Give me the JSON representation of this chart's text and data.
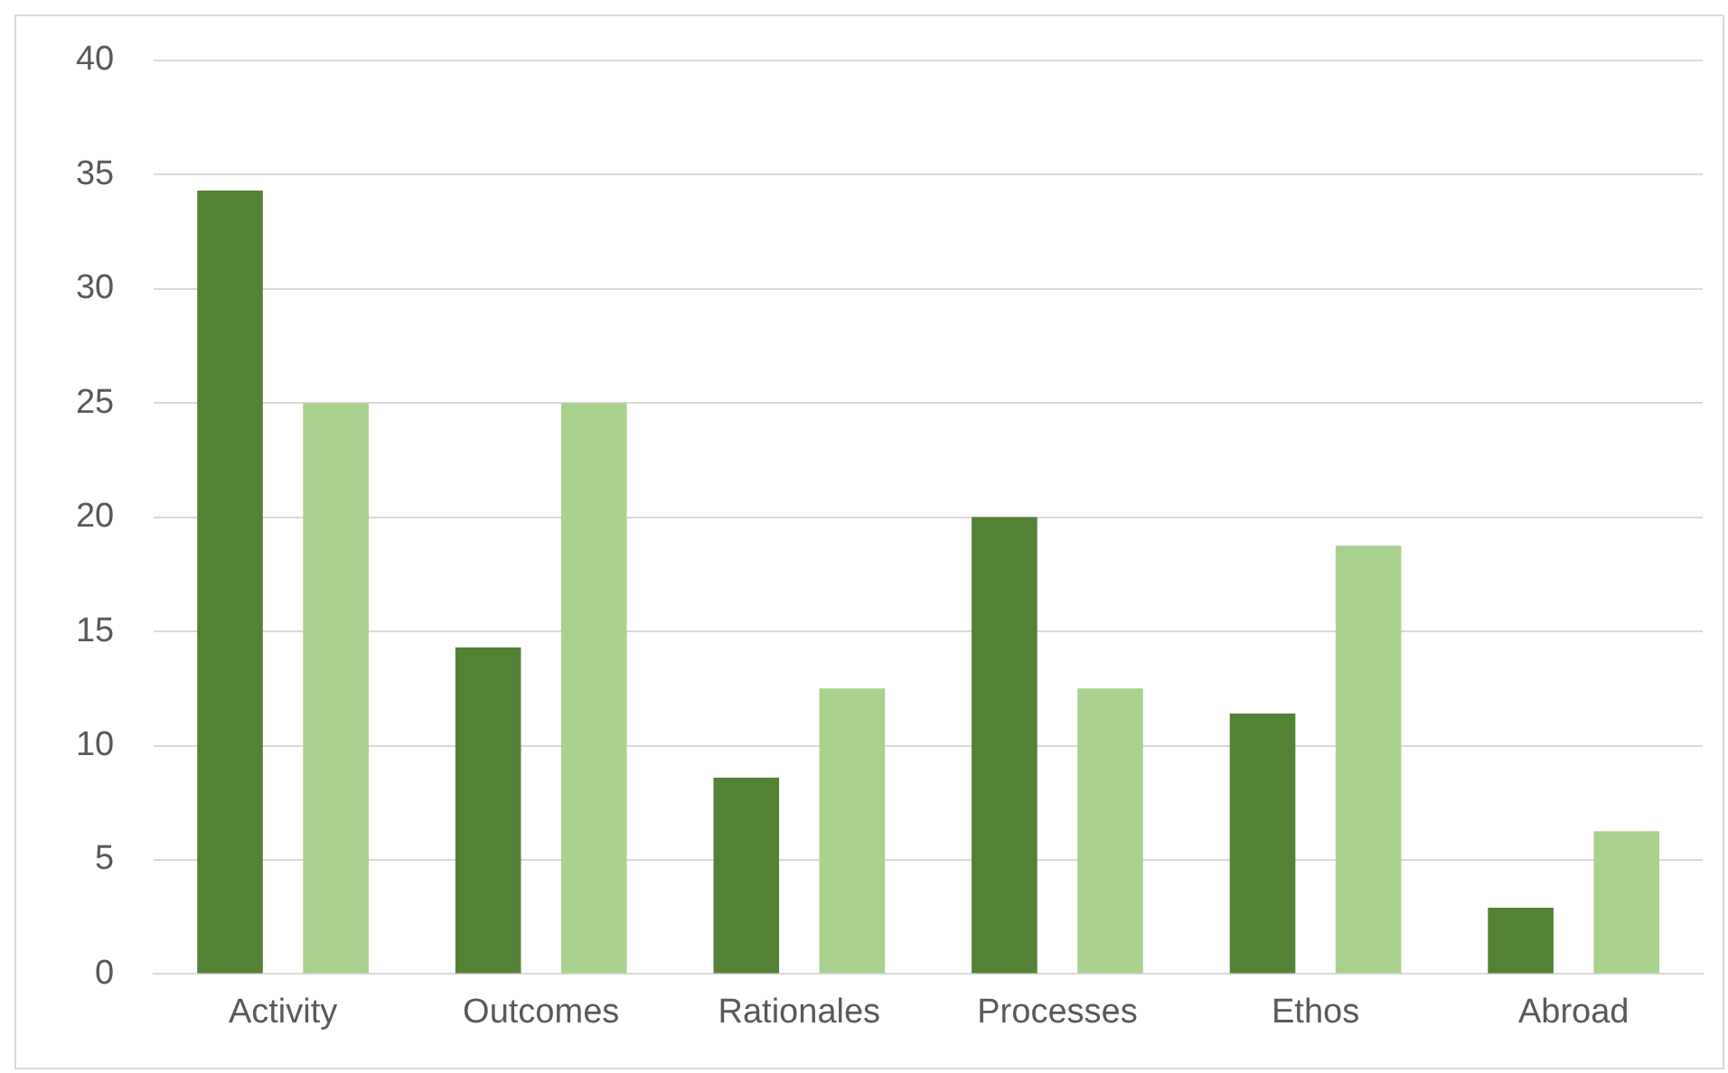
{
  "chart_data": {
    "type": "bar",
    "categories": [
      "Activity",
      "Outcomes",
      "Rationales",
      "Processes",
      "Ethos",
      "Abroad"
    ],
    "series": [
      {
        "color": "#548235",
        "values": [
          34.3,
          14.3,
          8.6,
          20,
          11.4,
          2.9
        ]
      },
      {
        "color": "#a9d18e",
        "values": [
          25,
          25,
          12.5,
          12.5,
          18.75,
          6.25
        ]
      }
    ],
    "ylim": [
      0,
      40
    ],
    "yticks": [
      0,
      5,
      10,
      15,
      20,
      25,
      30,
      35,
      40
    ],
    "grid": "y",
    "legend": false
  }
}
